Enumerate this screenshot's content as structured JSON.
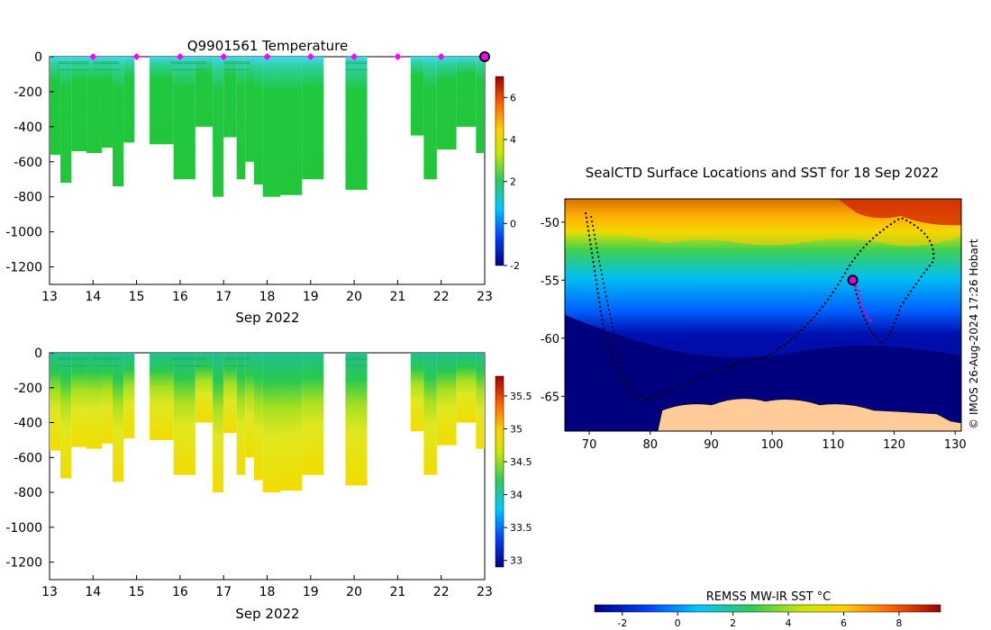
{
  "chart_data": [
    {
      "type": "heatmap",
      "title": "Q9901561  Temperature",
      "xlabel": "Sep 2022",
      "ylabel": "",
      "xlim": [
        13,
        23
      ],
      "ylim": [
        -1300,
        0
      ],
      "x_ticks": [
        "13",
        "14",
        "15",
        "16",
        "17",
        "18",
        "19",
        "20",
        "21",
        "22",
        "23"
      ],
      "y_ticks": [
        "0",
        "-200",
        "-400",
        "-600",
        "-800",
        "-1000",
        "-1200"
      ],
      "profile_days": [
        14.0,
        15.0,
        16.0,
        17.0,
        18.0,
        19.0,
        20.0,
        21.0,
        22.0
      ],
      "colorbar": {
        "min": -2,
        "max": 7,
        "ticks": [
          "6",
          "4",
          "2",
          "0",
          "-2"
        ],
        "colors": [
          "#00007f",
          "#0050ff",
          "#00d0ff",
          "#30d060",
          "#c8e800",
          "#ffd000",
          "#ff7000",
          "#a00000"
        ]
      },
      "columns": [
        {
          "x0": 13.0,
          "x1": 13.25,
          "depth": 560
        },
        {
          "x0": 13.25,
          "x1": 13.5,
          "depth": 720
        },
        {
          "x0": 13.5,
          "x1": 13.85,
          "depth": 540
        },
        {
          "x0": 13.85,
          "x1": 14.2,
          "depth": 550
        },
        {
          "x0": 14.2,
          "x1": 14.45,
          "depth": 520
        },
        {
          "x0": 14.45,
          "x1": 14.7,
          "depth": 740
        },
        {
          "x0": 14.7,
          "x1": 14.95,
          "depth": 490
        },
        {
          "x0": 15.3,
          "x1": 15.85,
          "depth": 500
        },
        {
          "x0": 15.85,
          "x1": 16.35,
          "depth": 700
        },
        {
          "x0": 16.35,
          "x1": 16.75,
          "depth": 400
        },
        {
          "x0": 16.75,
          "x1": 17.0,
          "depth": 800
        },
        {
          "x0": 17.0,
          "x1": 17.3,
          "depth": 460
        },
        {
          "x0": 17.3,
          "x1": 17.5,
          "depth": 700
        },
        {
          "x0": 17.5,
          "x1": 17.7,
          "depth": 600
        },
        {
          "x0": 17.7,
          "x1": 17.9,
          "depth": 730
        },
        {
          "x0": 17.9,
          "x1": 18.3,
          "depth": 800
        },
        {
          "x0": 18.3,
          "x1": 18.8,
          "depth": 790
        },
        {
          "x0": 18.8,
          "x1": 19.3,
          "depth": 700
        },
        {
          "x0": 19.8,
          "x1": 20.3,
          "depth": 760
        },
        {
          "x0": 21.3,
          "x1": 21.6,
          "depth": 450
        },
        {
          "x0": 21.6,
          "x1": 21.9,
          "depth": 700
        },
        {
          "x0": 21.9,
          "x1": 22.35,
          "depth": 530
        },
        {
          "x0": 22.35,
          "x1": 22.8,
          "depth": 400
        },
        {
          "x0": 22.8,
          "x1": 23.0,
          "depth": 550
        }
      ]
    },
    {
      "type": "heatmap",
      "title": "",
      "xlabel": "Sep 2022",
      "ylabel": "",
      "xlim": [
        13,
        23
      ],
      "ylim": [
        -1300,
        0
      ],
      "x_ticks": [
        "13",
        "14",
        "15",
        "16",
        "17",
        "18",
        "19",
        "20",
        "21",
        "22",
        "23"
      ],
      "y_ticks": [
        "0",
        "-200",
        "-400",
        "-600",
        "-800",
        "-1000",
        "-1200"
      ],
      "colorbar": {
        "min": 32.9,
        "max": 35.8,
        "ticks": [
          "35.5",
          "35",
          "34.5",
          "34",
          "33.5",
          "33"
        ],
        "colors": [
          "#00007f",
          "#0050ff",
          "#00d0ff",
          "#30c860",
          "#c8e800",
          "#ffd000",
          "#ff7000",
          "#a00000"
        ]
      }
    },
    {
      "type": "heatmap",
      "title": "SealCTD Surface Locations and SST for 18 Sep 2022",
      "xlabel": "",
      "ylabel": "",
      "xlim": [
        66,
        131
      ],
      "ylim": [
        -68,
        -48
      ],
      "x_ticks": [
        "70",
        "80",
        "90",
        "100",
        "110",
        "120",
        "130"
      ],
      "y_ticks": [
        "-50",
        "-55",
        "-60",
        "-65"
      ],
      "colorbar_label": "REMSS MW-IR SST °C",
      "colorbar": {
        "min": -3,
        "max": 9.5,
        "ticks": [
          "-2",
          "0",
          "2",
          "4",
          "6",
          "8"
        ],
        "colors": [
          "#00007f",
          "#0050ff",
          "#00d0ff",
          "#30d060",
          "#c8e800",
          "#ffd000",
          "#ff7000",
          "#a00000"
        ]
      },
      "current_location": {
        "lon": 113.2,
        "lat": -55.0
      },
      "track_recent": [
        [
          113.2,
          -55.0
        ],
        [
          114.2,
          -56.0
        ],
        [
          114.6,
          -57.2
        ],
        [
          115.4,
          -58.0
        ],
        [
          116.3,
          -58.6
        ]
      ],
      "credit": "©  IMOS 26-Aug-2024 17:26 Hobart"
    }
  ]
}
